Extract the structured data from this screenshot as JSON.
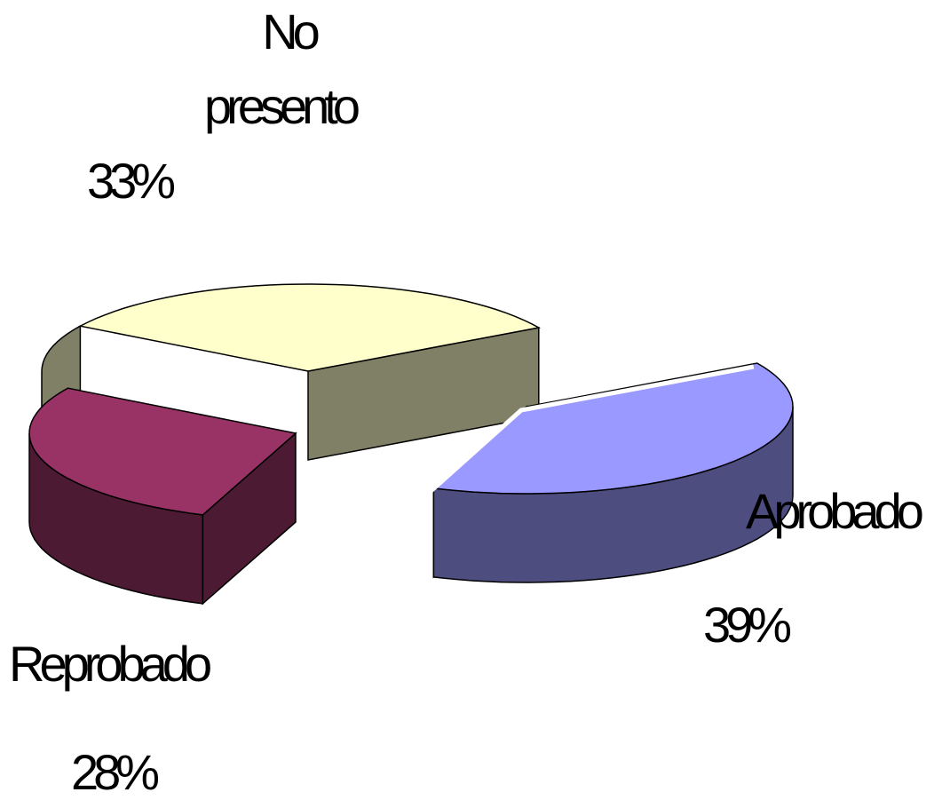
{
  "chart_data": {
    "type": "pie",
    "title": "",
    "three_d": true,
    "exploded": true,
    "legend": "none",
    "slices": [
      {
        "name": "No presento",
        "name_lines": [
          "No",
          "presento"
        ],
        "value": 33,
        "label": "33%",
        "top_color": "#ffffcc",
        "side_color": "#808066"
      },
      {
        "name": "Aprobado",
        "name_lines": [
          "Aprobado"
        ],
        "value": 39,
        "label": "39%",
        "top_color": "#9999ff",
        "side_color": "#4d4d80"
      },
      {
        "name": "Reprobado",
        "name_lines": [
          "Reprobado"
        ],
        "value": 28,
        "label": "28%",
        "top_color": "#993366",
        "side_color": "#4d1a33"
      }
    ]
  }
}
